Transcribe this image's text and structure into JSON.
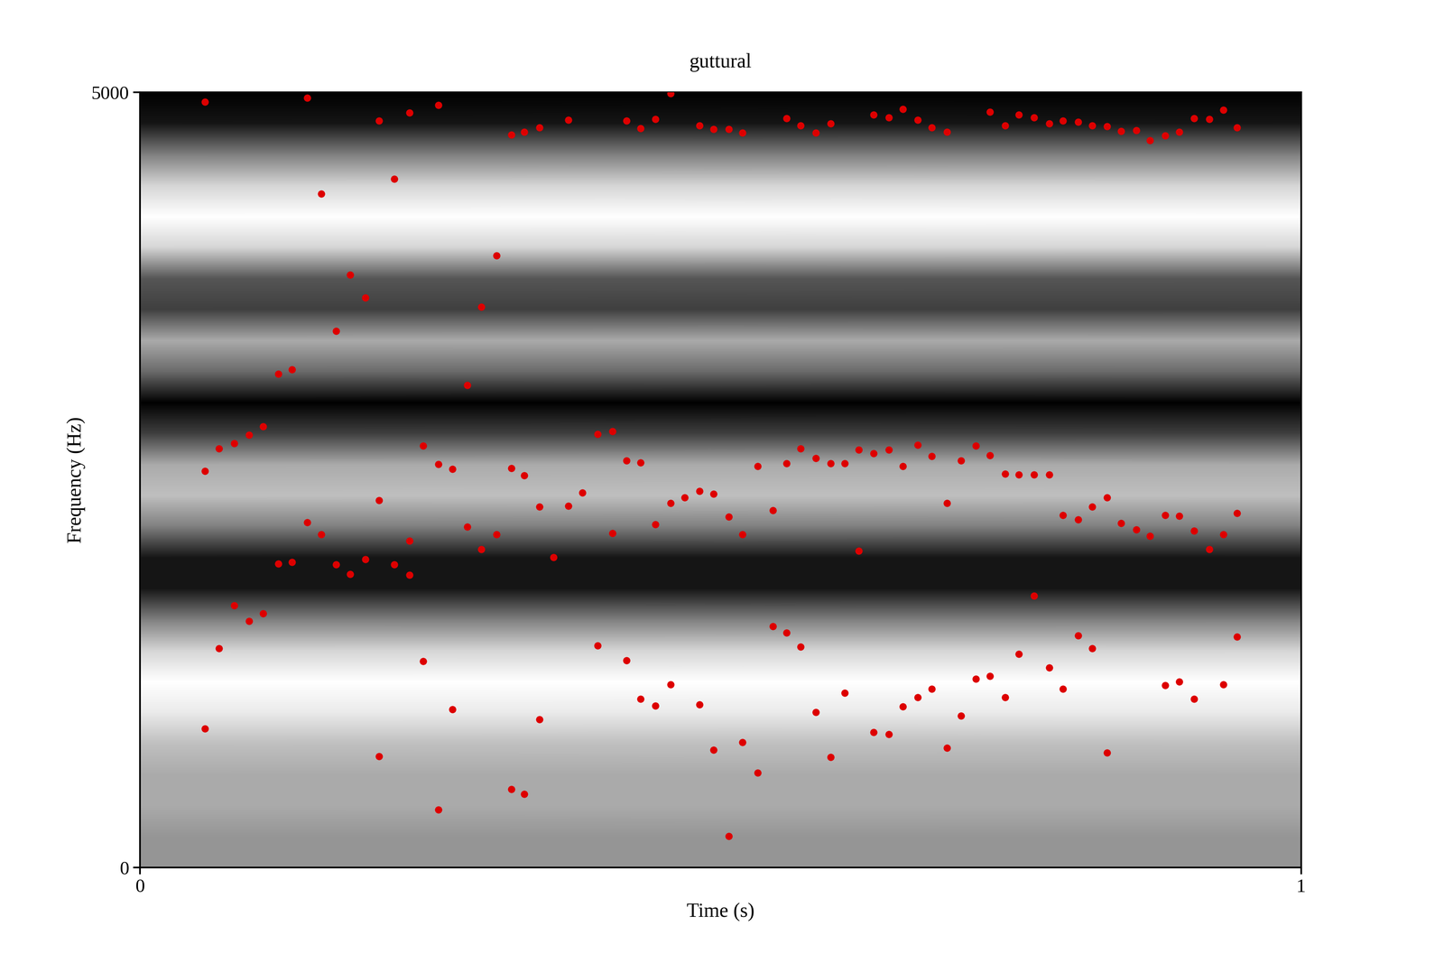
{
  "chart_data": {
    "type": "scatter",
    "title": "guttural",
    "x_label": "Time (s)",
    "y_label": "Frequency (Hz)",
    "xlim": [
      0,
      1
    ],
    "xticks": [
      0,
      1
    ],
    "ylim": [
      0,
      5000
    ],
    "yticks": [
      0,
      5000
    ],
    "grid": false,
    "spectrogram": {
      "frequencies": [
        0,
        200,
        400,
        600,
        800,
        1000,
        1200,
        1400,
        1600,
        1800,
        2000,
        2200,
        2400,
        2600,
        2800,
        3000,
        3200,
        3400,
        3600,
        3800,
        4000,
        4200,
        4400,
        4600,
        4800,
        5000
      ],
      "intensity": [
        0.5,
        0.5,
        0.45,
        0.45,
        0.4,
        0.3,
        0.25,
        0.35,
        0.55,
        0.8,
        0.8,
        0.55,
        0.4,
        0.45,
        0.7,
        0.85,
        0.6,
        0.45,
        0.7,
        0.65,
        0.35,
        0.25,
        0.35,
        0.55,
        0.8,
        0.85
      ]
    },
    "series": [
      {
        "color": "#dd0000",
        "marker": "o",
        "x": [
          0.056,
          0.056,
          0.056,
          0.068,
          0.068,
          0.081,
          0.081,
          0.094,
          0.094,
          0.106,
          0.106,
          0.119,
          0.119,
          0.131,
          0.131,
          0.144,
          0.144,
          0.156,
          0.156,
          0.169,
          0.169,
          0.181,
          0.181,
          0.194,
          0.194,
          0.206,
          0.206,
          0.206,
          0.219,
          0.219,
          0.232,
          0.232,
          0.232,
          0.244,
          0.244,
          0.257,
          0.257,
          0.257,
          0.269,
          0.269,
          0.282,
          0.282,
          0.294,
          0.294,
          0.307,
          0.307,
          0.32,
          0.32,
          0.32,
          0.331,
          0.331,
          0.331,
          0.344,
          0.344,
          0.344,
          0.356,
          0.369,
          0.369,
          0.381,
          0.394,
          0.394,
          0.407,
          0.407,
          0.419,
          0.419,
          0.419,
          0.431,
          0.431,
          0.431,
          0.444,
          0.444,
          0.444,
          0.457,
          0.457,
          0.457,
          0.469,
          0.482,
          0.482,
          0.482,
          0.494,
          0.494,
          0.494,
          0.507,
          0.507,
          0.507,
          0.519,
          0.519,
          0.519,
          0.532,
          0.532,
          0.545,
          0.545,
          0.557,
          0.557,
          0.557,
          0.569,
          0.569,
          0.569,
          0.582,
          0.582,
          0.582,
          0.595,
          0.595,
          0.595,
          0.607,
          0.607,
          0.619,
          0.619,
          0.632,
          0.632,
          0.632,
          0.645,
          0.645,
          0.645,
          0.657,
          0.657,
          0.657,
          0.67,
          0.67,
          0.67,
          0.682,
          0.682,
          0.682,
          0.695,
          0.695,
          0.695,
          0.707,
          0.707,
          0.72,
          0.72,
          0.732,
          0.732,
          0.732,
          0.745,
          0.745,
          0.745,
          0.757,
          0.757,
          0.757,
          0.77,
          0.77,
          0.77,
          0.783,
          0.783,
          0.783,
          0.795,
          0.795,
          0.795,
          0.808,
          0.808,
          0.808,
          0.82,
          0.82,
          0.82,
          0.833,
          0.833,
          0.833,
          0.845,
          0.845,
          0.858,
          0.858,
          0.87,
          0.87,
          0.883,
          0.883,
          0.883,
          0.895,
          0.895,
          0.895,
          0.908,
          0.908,
          0.908,
          0.921,
          0.921,
          0.933,
          0.933,
          0.933,
          0.945,
          0.945,
          0.945
        ],
        "y": [
          4940,
          2559,
          897,
          2702,
          1413,
          2737,
          1692,
          2791,
          1591,
          2844,
          1639,
          3183,
          1960,
          3213,
          1971,
          4964,
          2227,
          4347,
          2150,
          3462,
          1954,
          3824,
          1894,
          3676,
          1989,
          4816,
          2369,
          718,
          4442,
          1954,
          4869,
          2108,
          1888,
          2720,
          1330,
          4917,
          2601,
          374,
          2571,
          1021,
          3112,
          2197,
          3616,
          2054,
          3949,
          2150,
          4727,
          2577,
          505,
          4744,
          2530,
          475,
          4774,
          2328,
          956,
          2001,
          4822,
          2334,
          2417,
          2797,
          1431,
          2815,
          2156,
          4816,
          2625,
          1336,
          4768,
          2613,
          1087,
          4828,
          2215,
          1045,
          4994,
          2351,
          1182,
          2387,
          4786,
          2429,
          1051,
          4762,
          2411,
          760,
          4762,
          2262,
          202,
          4739,
          2150,
          808,
          2589,
          612,
          2304,
          1556,
          4834,
          2607,
          1514,
          4786,
          2702,
          1425,
          4739,
          2642,
          1003,
          4798,
          2607,
          713,
          2607,
          1128,
          2696,
          2043,
          4857,
          2672,
          873,
          4839,
          2696,
          861,
          4893,
          2589,
          1039,
          4822,
          2726,
          1099,
          4774,
          2654,
          1152,
          4744,
          2351,
          772,
          2625,
          980,
          2720,
          1217,
          4875,
          2660,
          1235,
          4786,
          2541,
          1099,
          4857,
          2535,
          1378,
          4839,
          2535,
          1752,
          4798,
          2535,
          1289,
          4816,
          2274,
          1152,
          4810,
          2245,
          1496,
          4786,
          2328,
          1413,
          4780,
          2387,
          742,
          4750,
          2221,
          4756,
          2179,
          4691,
          2138,
          4721,
          2274,
          1176,
          4744,
          2268,
          1199,
          4834,
          2173,
          1087,
          4828,
          2054,
          4887,
          2150,
          1182,
          4774,
          2286,
          1490
        ]
      }
    ]
  }
}
